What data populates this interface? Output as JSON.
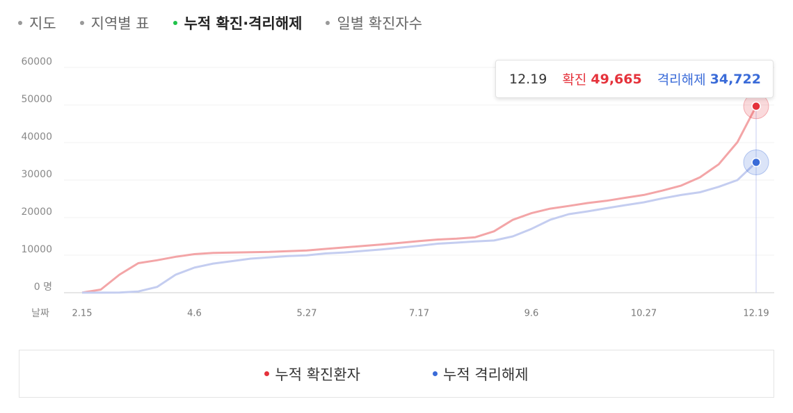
{
  "tabs": [
    "지도",
    "지역별 표",
    "누적 확진·격리해제",
    "일별 확진자수"
  ],
  "chart_data": {
    "type": "line",
    "x_label": "날짜",
    "x": [
      "2.15",
      "2.24",
      "3.3",
      "3.12",
      "3.20",
      "3.29",
      "4.6",
      "4.15",
      "4.23",
      "5.2",
      "5.10",
      "5.19",
      "5.27",
      "6.5",
      "6.13",
      "6.22",
      "6.30",
      "7.9",
      "7.17",
      "7.26",
      "8.3",
      "8.12",
      "8.20",
      "8.29",
      "9.6",
      "9.15",
      "9.23",
      "10.2",
      "10.10",
      "10.19",
      "10.27",
      "11.5",
      "11.13",
      "11.22",
      "11.30",
      "12.10",
      "12.19"
    ],
    "xticks": [
      "2.15",
      "4.6",
      "5.27",
      "7.17",
      "9.6",
      "10.27",
      "12.19"
    ],
    "ylim": [
      0,
      60000
    ],
    "yticks": [
      {
        "value": 0,
        "label": "0 명"
      },
      10000,
      20000,
      30000,
      40000,
      50000,
      60000
    ],
    "grid": true,
    "series": [
      {
        "name": "누적 확진환자",
        "tooltip_name": "확진",
        "color": "#f3a5a7",
        "highlight_color": "#e5323b",
        "values": [
          30,
          833,
          4812,
          7869,
          8652,
          9583,
          10284,
          10591,
          10702,
          10780,
          10874,
          11078,
          11265,
          11668,
          12051,
          12438,
          12850,
          13293,
          13745,
          14175,
          14389,
          14770,
          16346,
          19400,
          21177,
          22391,
          23106,
          23889,
          24476,
          25275,
          26043,
          27195,
          28546,
          30733,
          34201,
          40098,
          49665
        ],
        "value_labels": [
          null,
          null,
          null,
          null,
          null,
          null,
          null,
          null,
          null,
          null,
          null,
          null,
          null,
          null,
          null,
          null,
          null,
          null,
          null,
          null,
          null,
          null,
          null,
          null,
          null,
          null,
          null,
          null,
          null,
          null,
          null,
          null,
          null,
          null,
          null,
          null,
          "49,665"
        ]
      },
      {
        "name": "누적 격리해제",
        "tooltip_name": "격리해제",
        "color": "#c4cdf0",
        "highlight_color": "#3a6bd8",
        "values": [
          16,
          22,
          30,
          333,
          1540,
          4811,
          6694,
          7757,
          8411,
          9072,
          9419,
          9762,
          9938,
          10467,
          10718,
          11137,
          11537,
          12019,
          12509,
          13049,
          13330,
          13642,
          13901,
          14997,
          16992,
          19432,
          20923,
          21666,
          22502,
          23306,
          24072,
          25121,
          26044,
          26763,
          28199,
          30006,
          34722
        ],
        "value_labels": [
          null,
          null,
          null,
          null,
          null,
          null,
          null,
          null,
          null,
          null,
          null,
          null,
          null,
          null,
          null,
          null,
          null,
          null,
          null,
          null,
          null,
          null,
          null,
          null,
          null,
          null,
          null,
          null,
          null,
          null,
          null,
          null,
          null,
          null,
          null,
          null,
          "34,722"
        ]
      }
    ]
  }
}
